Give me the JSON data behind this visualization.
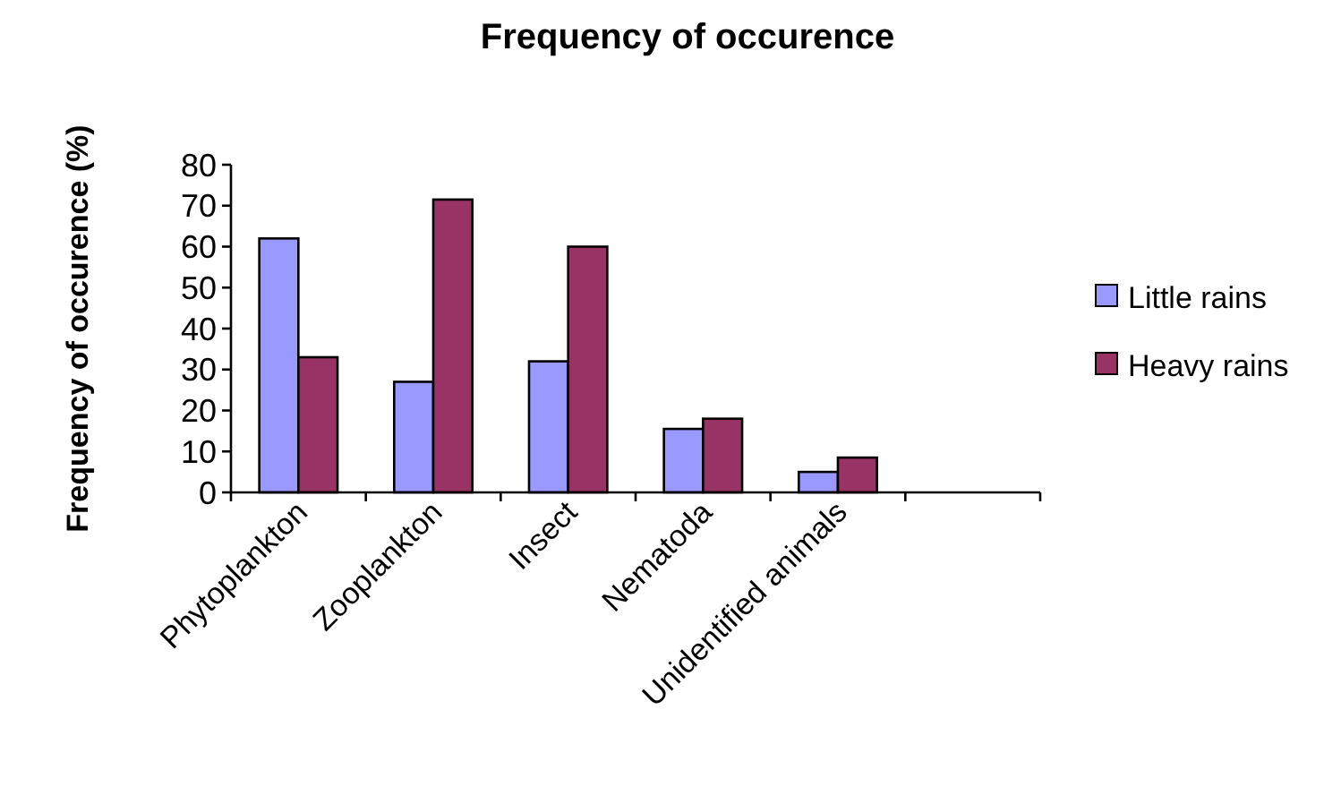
{
  "chart_data": {
    "type": "bar",
    "title": "Frequency of occurence",
    "ylabel": "Frequency of occurence (%)",
    "categories": [
      "Phytoplankton",
      "Zooplankton",
      "Insect",
      "Nematoda",
      "Unidentified animals",
      null
    ],
    "series": [
      {
        "name": "Little rains",
        "color": "#9999ff",
        "values": [
          62,
          27,
          32,
          15.5,
          5,
          null
        ]
      },
      {
        "name": "Heavy rains",
        "color": "#993366",
        "values": [
          33,
          71.5,
          60,
          18,
          8.5,
          null
        ]
      }
    ],
    "ylim": [
      0,
      80
    ],
    "yticks": [
      0,
      10,
      20,
      30,
      40,
      50,
      60,
      70,
      80
    ],
    "grid": false,
    "legend": "right"
  }
}
